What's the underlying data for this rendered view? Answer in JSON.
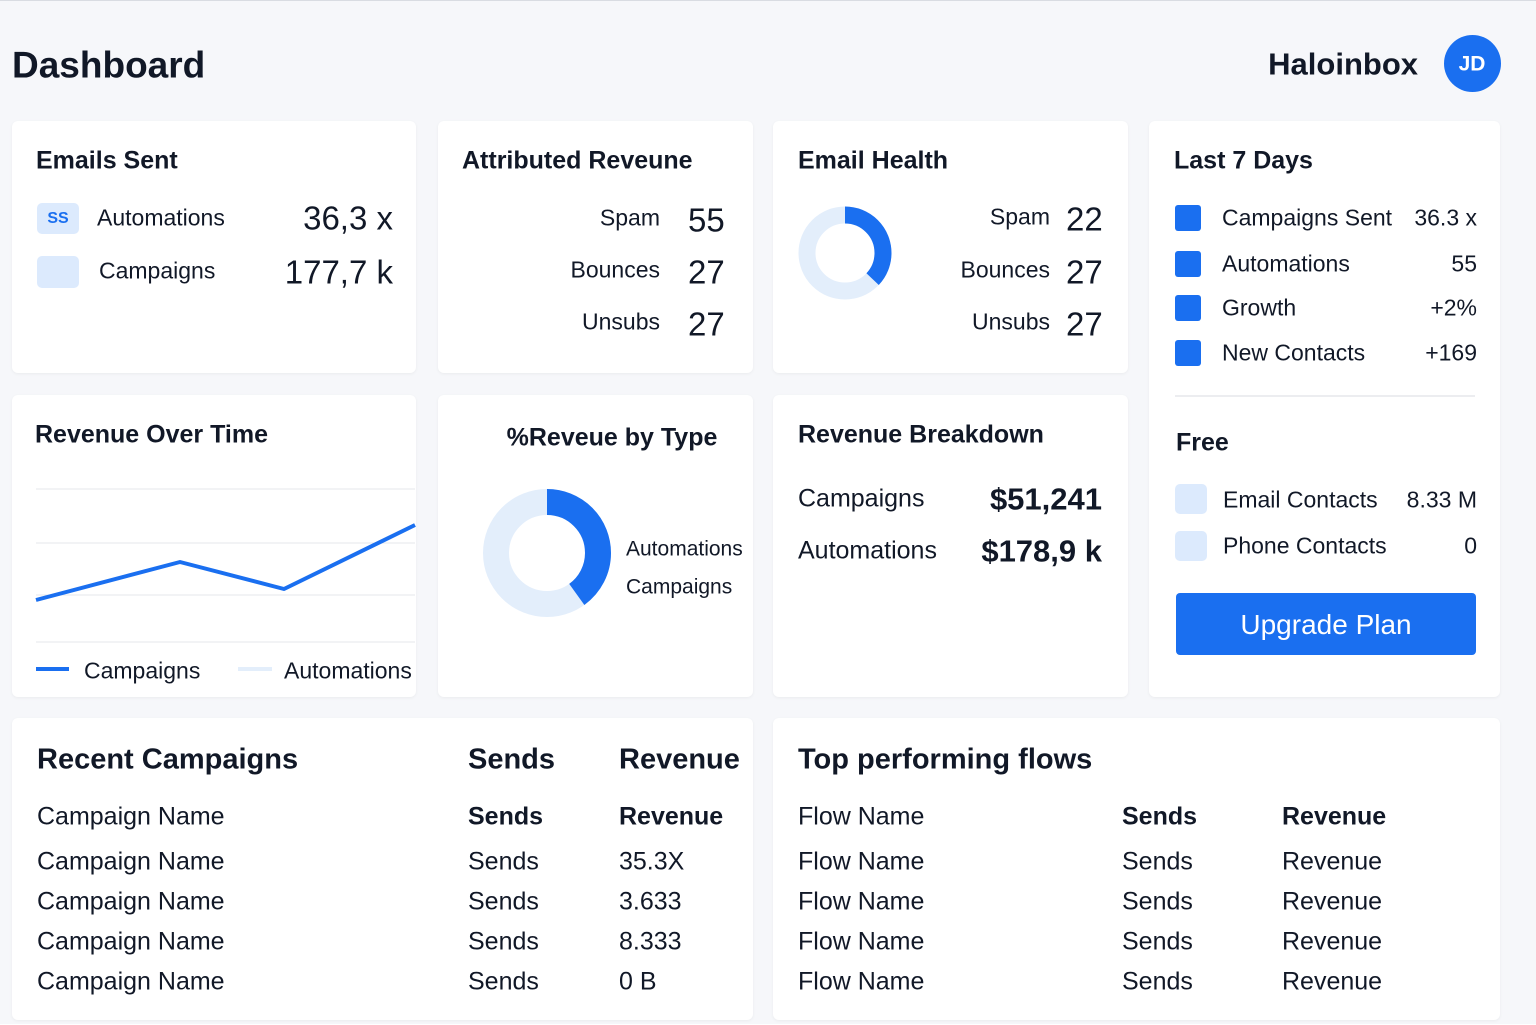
{
  "header": {
    "title": "Dashboard",
    "brand": "Haloinbox",
    "avatar": "JD"
  },
  "emails_sent": {
    "title": "Emails Sent",
    "rows": [
      {
        "icon": "SS",
        "label": "Automations",
        "value": "36,3 x"
      },
      {
        "label": "Campaigns",
        "value": "177,7 k"
      }
    ]
  },
  "attributed_revenue": {
    "title": "Attributed Reveune",
    "rows": [
      {
        "label": "Spam",
        "value": "55"
      },
      {
        "label": "Bounces",
        "value": "27"
      },
      {
        "label": "Unsubs",
        "value": "27"
      }
    ]
  },
  "email_health": {
    "title": "Email Health",
    "rows": [
      {
        "label": "Spam",
        "value": "22"
      },
      {
        "label": "Bounces",
        "value": "27"
      },
      {
        "label": "Unsubs",
        "value": "27"
      }
    ]
  },
  "last_7_days": {
    "title": "Last 7 Days",
    "rows": [
      {
        "label": "Campaigns Sent",
        "value": "36.3 x"
      },
      {
        "label": "Automations",
        "value": "55"
      },
      {
        "label": "Growth",
        "value": "+2%"
      },
      {
        "label": "New Contacts",
        "value": "+169"
      }
    ],
    "plan": "Free",
    "contacts": [
      {
        "label": "Email Contacts",
        "value": "8.33 M"
      },
      {
        "label": "Phone Contacts",
        "value": "0"
      }
    ],
    "button": "Upgrade Plan"
  },
  "revenue_over_time": {
    "title": "Revenue Over Time",
    "legend": [
      "Campaigns",
      "Automations"
    ]
  },
  "revenue_by_type": {
    "title": "%Reveue by Type",
    "legend": [
      "Automations",
      "Campaigns"
    ]
  },
  "revenue_breakdown": {
    "title": "Revenue Breakdown",
    "rows": [
      {
        "label": "Campaigns",
        "value": "$51,241"
      },
      {
        "label": "Automations",
        "value": "$178,9 k"
      }
    ]
  },
  "recent_campaigns": {
    "title": "Recent Campaigns",
    "columns": [
      "Sends",
      "Revenue"
    ],
    "header_row": [
      "Campaign Name",
      "Sends",
      "Revenue"
    ],
    "rows": [
      [
        "Campaign Name",
        "Sends",
        "35.3X"
      ],
      [
        "Campaign Name",
        "Sends",
        "3.633"
      ],
      [
        "Campaign Name",
        "Sends",
        "8.333"
      ],
      [
        "Campaign Name",
        "Sends",
        "0 B"
      ]
    ]
  },
  "top_flows": {
    "title": "Top performing flows",
    "header_row": [
      "Flow Name",
      "Sends",
      "Revenue"
    ],
    "rows": [
      [
        "Flow Name",
        "Sends",
        "Revenue"
      ],
      [
        "Flow Name",
        "Sends",
        "Revenue"
      ],
      [
        "Flow Name",
        "Sends",
        "Revenue"
      ],
      [
        "Flow Name",
        "Sends",
        "Revenue"
      ]
    ]
  }
}
